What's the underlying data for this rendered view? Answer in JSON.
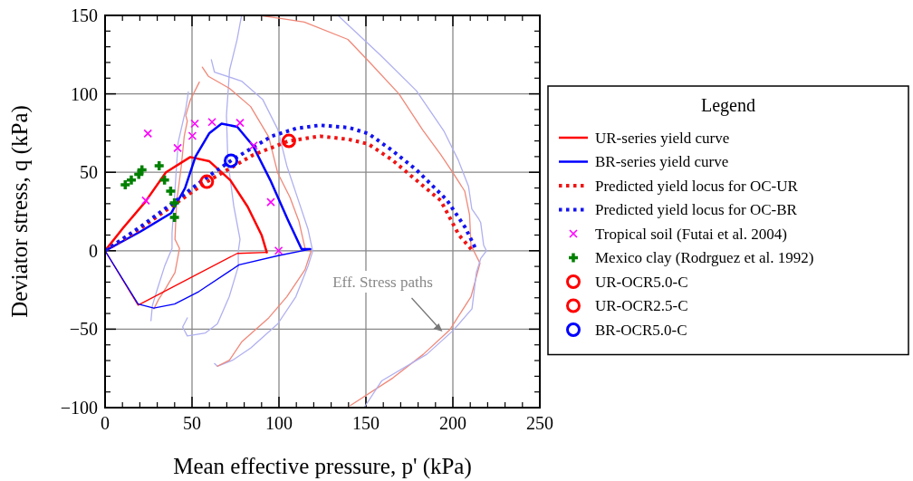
{
  "chart_data": {
    "type": "line",
    "xlabel": "Mean effective pressure, p' (kPa)",
    "ylabel": "Deviator stress, q (kPa)",
    "legend_title": "Legend",
    "legend": "right",
    "grid": true,
    "xlim": [
      0,
      250
    ],
    "xticks": [
      0,
      50,
      100,
      150,
      200,
      250
    ],
    "ylim": [
      -100,
      150
    ],
    "yticks": [
      {
        "value": -100,
        "label": "−100"
      },
      {
        "value": -50,
        "label": "−50"
      },
      0,
      50,
      100,
      150
    ],
    "annotations": [
      {
        "text": "Eff. Stress paths",
        "x": 194,
        "y": -51.5
      }
    ],
    "series": [
      {
        "type": "line",
        "color": "#f08878",
        "x": [
          90.6,
          101,
          114.6,
          139.6,
          151.4,
          169,
          182.6,
          193,
          200,
          206.8,
          209.6,
          210.4,
          215.6,
          210.4,
          198.3,
          183,
          165.6,
          141
        ],
        "values": [
          149.6,
          148,
          145.7,
          134.7,
          121,
          100,
          77,
          61.3,
          49.7,
          38,
          22.7,
          3.5,
          -8,
          -29.3,
          -50.3,
          -66,
          -81,
          -98.7
        ]
      },
      {
        "type": "line",
        "color": "#b0b0f0",
        "x": [
          133.9,
          158,
          179,
          195,
          203,
          209,
          210.9,
          214.6,
          216,
          217.7,
          219.3,
          216,
          213.5,
          211,
          200,
          185,
          159,
          148.9
        ],
        "values": [
          150,
          125,
          102,
          76,
          58,
          41,
          26.6,
          20.8,
          17.9,
          3.5,
          0,
          -5,
          -14,
          -37,
          -51,
          -66,
          -83,
          -100
        ]
      },
      {
        "type": "line",
        "color": "#b0b0f0",
        "x": [
          78.5,
          75.9,
          71.6,
          69.8,
          70.6,
          74,
          77.6,
          76.6,
          76.6,
          71.4,
          64.6,
          57.7,
          47.3,
          44.6,
          47.3
        ],
        "values": [
          150,
          134.5,
          115.2,
          86.3,
          57.4,
          28.5,
          7.3,
          -0.4,
          -10,
          -29.3,
          -46.6,
          -52.4,
          -54.3,
          -48.6,
          -42.8
        ]
      },
      {
        "type": "line",
        "color": "#b0b0f0",
        "x": [
          61.1,
          62.9,
          78.5,
          90.6,
          99.3,
          104.5,
          111.5,
          116.7,
          119.3,
          119.3,
          116.7,
          109.7,
          99.3,
          83.7,
          73.3,
          64.6,
          62.9
        ],
        "values": [
          121.8,
          113.9,
          108.1,
          96.5,
          77.3,
          54.2,
          31,
          13.7,
          0.2,
          -0.6,
          -9.8,
          -29.3,
          -46.6,
          -62,
          -69.8,
          -73.6,
          -71.9
        ]
      },
      {
        "type": "line",
        "color": "#f08878",
        "x": [
          55.9,
          59.4,
          71.5,
          83.7,
          94.1,
          99.3,
          106.3,
          111.5,
          115,
          118.4,
          115,
          104.5,
          94.1,
          78.5,
          71.5,
          64.6
        ],
        "values": [
          117,
          111.2,
          103.5,
          91.9,
          72.6,
          49.5,
          34.1,
          18.7,
          1.5,
          -0.4,
          -12,
          -29.3,
          -42.8,
          -58.2,
          -69.8,
          -73.6
        ]
      },
      {
        "type": "line",
        "color": "#f08878",
        "x": [
          54.2,
          49,
          46.4,
          47.3,
          45.5,
          43.8,
          41.1,
          40.2,
          42.8,
          40.2,
          35,
          30.7,
          28.1
        ],
        "values": [
          107.5,
          96,
          86.3,
          82.7,
          72.8,
          53.6,
          30.5,
          7.3,
          1.5,
          -13.9,
          -23.7,
          -31.2,
          -37
        ]
      },
      {
        "type": "line",
        "color": "#b0b0f0",
        "x": [
          47.9,
          46.4,
          42,
          40.2,
          38.5,
          38.5,
          34.2,
          29.8,
          27.2,
          26.4
        ],
        "values": [
          101.2,
          90.2,
          69,
          38.7,
          11.1,
          1.5,
          -10,
          -25.4,
          -35,
          -44.6
        ]
      },
      {
        "name": "UR-series yield curve",
        "color": "#ff0000",
        "line_style": "solid",
        "marker": "none",
        "x": [
          0,
          10,
          23,
          35,
          49,
          60,
          72,
          82,
          90,
          93
        ],
        "values": [
          0,
          14,
          31,
          50,
          59.7,
          57,
          45,
          28,
          10,
          -1
        ]
      },
      {
        "color": "#ff0000",
        "line_style": "solid",
        "marker": "none",
        "x": [
          0,
          19,
          76,
          93
        ],
        "values": [
          0,
          -34.7,
          -1.7,
          -1
        ]
      },
      {
        "name": "BR-series yield curve",
        "color": "#0000ff",
        "line_style": "solid",
        "marker": "none",
        "x": [
          0,
          20,
          38,
          46,
          52,
          60,
          67,
          76,
          85,
          95,
          105,
          113,
          118
        ],
        "values": [
          0,
          12,
          24,
          40,
          60,
          75,
          81,
          79,
          67,
          45,
          20,
          1,
          1
        ]
      },
      {
        "color": "#0000ff",
        "line_style": "solid",
        "marker": "none",
        "x": [
          0,
          19,
          28,
          40,
          54,
          77,
          100,
          118
        ],
        "values": [
          0,
          -34,
          -36.6,
          -34,
          -26,
          -9,
          -3,
          1
        ]
      },
      {
        "name": "Predicted yield locus for OC-UR",
        "color": "#f01414",
        "line_style": "dotted",
        "marker": "none",
        "x": [
          0,
          20,
          38.5,
          58.5,
          85,
          105.7,
          123.6,
          140,
          151.4,
          165,
          175.7,
          193,
          203.5,
          211.3
        ],
        "values": [
          0,
          14,
          28.5,
          44,
          61,
          70,
          73,
          71,
          68,
          58,
          48,
          32,
          10,
          0
        ]
      },
      {
        "name": "Predicted yield locus for OC-BR",
        "color": "#1414f0",
        "line_style": "dotted",
        "marker": "none",
        "x": [
          0,
          20,
          38.5,
          55,
          72.4,
          95.8,
          110,
          123.6,
          140,
          151.4,
          165,
          179,
          196.5,
          207,
          213
        ],
        "values": [
          0,
          15,
          30,
          44,
          57.4,
          73,
          78,
          80,
          78.5,
          74.7,
          64,
          51.6,
          32.4,
          15,
          1.5
        ]
      },
      {
        "name": "Tropical soil (Futai et al. 2004)",
        "type": "scatter",
        "color": "#ff00ff",
        "marker": "x",
        "x": [
          24.6,
          51.6,
          61.5,
          77.6,
          50.2,
          41.7,
          85.4,
          23.4,
          95.3,
          99.8
        ],
        "values": [
          74.7,
          81,
          82,
          81.5,
          73.2,
          65.5,
          67,
          32,
          31,
          0
        ]
      },
      {
        "name": "Mexico clay (Rodrguez et al. 1992)",
        "type": "scatter",
        "color": "#008000",
        "marker": "cross",
        "x": [
          11.6,
          15.1,
          19.4,
          21.2,
          31.1,
          34.2,
          37.7,
          39.9,
          39.9
        ],
        "values": [
          42,
          45,
          48.7,
          51.6,
          54.2,
          45,
          38,
          30.5,
          21.2
        ]
      },
      {
        "name": "UR-OCR5.0-C",
        "type": "scatter",
        "color": "#ff0000",
        "marker": "circle",
        "x": [
          58.5
        ],
        "values": [
          44
        ]
      },
      {
        "name": "UR-OCR2.5-C",
        "type": "scatter",
        "color": "#ff0000",
        "marker": "circle",
        "x": [
          105.7
        ],
        "values": [
          70
        ]
      },
      {
        "name": "BR-OCR5.0-C",
        "type": "scatter",
        "color": "#0000ff",
        "marker": "circle",
        "x": [
          72.4
        ],
        "values": [
          57.4
        ]
      }
    ]
  }
}
